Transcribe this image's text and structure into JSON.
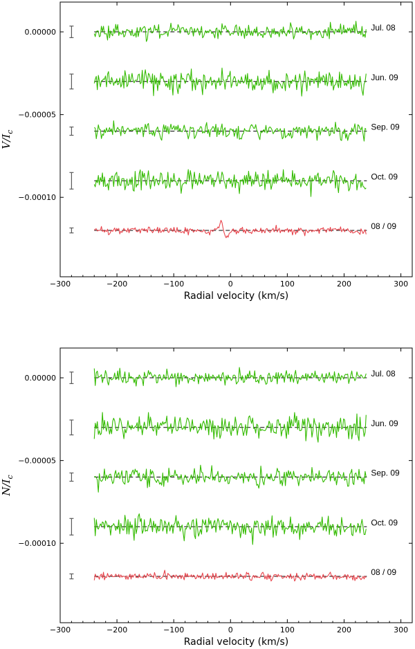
{
  "colors": {
    "green": "#33bb00",
    "red": "#e8434b",
    "baseline": "#000000",
    "errorbar": "#5a5a5a",
    "axes": "#000000"
  },
  "chart_data": [
    {
      "type": "line",
      "panel": "top",
      "xlabel": "Radial velocity (km/s)",
      "ylabel": "V/I",
      "ylabel_sub": "c",
      "xlim": [
        -300,
        320
      ],
      "ylim": [
        -0.000148,
        1.8e-05
      ],
      "xticks": [
        -300,
        -200,
        -100,
        0,
        100,
        200,
        300
      ],
      "xtick_labels": [
        "−300",
        "−200",
        "−100",
        "0",
        "100",
        "200",
        "300"
      ],
      "yticks": [
        0.0,
        -5e-05,
        -0.0001
      ],
      "ytick_labels": [
        "0.00000",
        "−0.00005",
        "−0.00010"
      ],
      "x_range": [
        -240,
        240
      ],
      "x_step": 1.8,
      "errorbar_x": -280,
      "series": [
        {
          "name": "Jul. 08",
          "offset": 0.0,
          "color_key": "green",
          "noise": 2.2e-06,
          "errorbar": 3.5e-06,
          "feature": {
            "center": -10,
            "amp": 2.5e-06,
            "width": 6
          }
        },
        {
          "name": "Jun. 09",
          "offset": -3e-05,
          "color_key": "green",
          "noise": 3.5e-06,
          "errorbar": 4.5e-06,
          "feature": null
        },
        {
          "name": "Sep. 09",
          "offset": -6e-05,
          "color_key": "green",
          "noise": 2.5e-06,
          "errorbar": 2.5e-06,
          "feature": {
            "center": -10,
            "amp": 2e-06,
            "width": 6
          }
        },
        {
          "name": "Oct. 09",
          "offset": -9e-05,
          "color_key": "green",
          "noise": 3e-06,
          "errorbar": 5e-06,
          "feature": null
        },
        {
          "name": "08 / 09",
          "offset": -0.00012,
          "color_key": "red",
          "noise": 1.1e-06,
          "errorbar": 1.5e-06,
          "feature": {
            "center": -12,
            "amp": 4.5e-06,
            "width": 7
          }
        }
      ]
    },
    {
      "type": "line",
      "panel": "bottom",
      "xlabel": "Radial velocity (km/s)",
      "ylabel": "N/I",
      "ylabel_sub": "c",
      "xlim": [
        -300,
        320
      ],
      "ylim": [
        -0.000148,
        1.8e-05
      ],
      "xticks": [
        -300,
        -200,
        -100,
        0,
        100,
        200,
        300
      ],
      "xtick_labels": [
        "−300",
        "−200",
        "−100",
        "0",
        "100",
        "200",
        "300"
      ],
      "yticks": [
        0.0,
        -5e-05,
        -0.0001
      ],
      "ytick_labels": [
        "0.00000",
        "−0.00005",
        "−0.00010"
      ],
      "x_range": [
        -240,
        240
      ],
      "x_step": 1.8,
      "errorbar_x": -280,
      "series": [
        {
          "name": "Jul. 08",
          "offset": 0.0,
          "color_key": "green",
          "noise": 2.2e-06,
          "errorbar": 3.5e-06,
          "feature": null
        },
        {
          "name": "Jun. 09",
          "offset": -3e-05,
          "color_key": "green",
          "noise": 3.5e-06,
          "errorbar": 4.5e-06,
          "feature": null
        },
        {
          "name": "Sep. 09",
          "offset": -6e-05,
          "color_key": "green",
          "noise": 2.5e-06,
          "errorbar": 2.5e-06,
          "feature": null
        },
        {
          "name": "Oct. 09",
          "offset": -9e-05,
          "color_key": "green",
          "noise": 3e-06,
          "errorbar": 5e-06,
          "feature": null
        },
        {
          "name": "08 / 09",
          "offset": -0.00012,
          "color_key": "red",
          "noise": 1.1e-06,
          "errorbar": 1.5e-06,
          "feature": null
        }
      ]
    }
  ]
}
